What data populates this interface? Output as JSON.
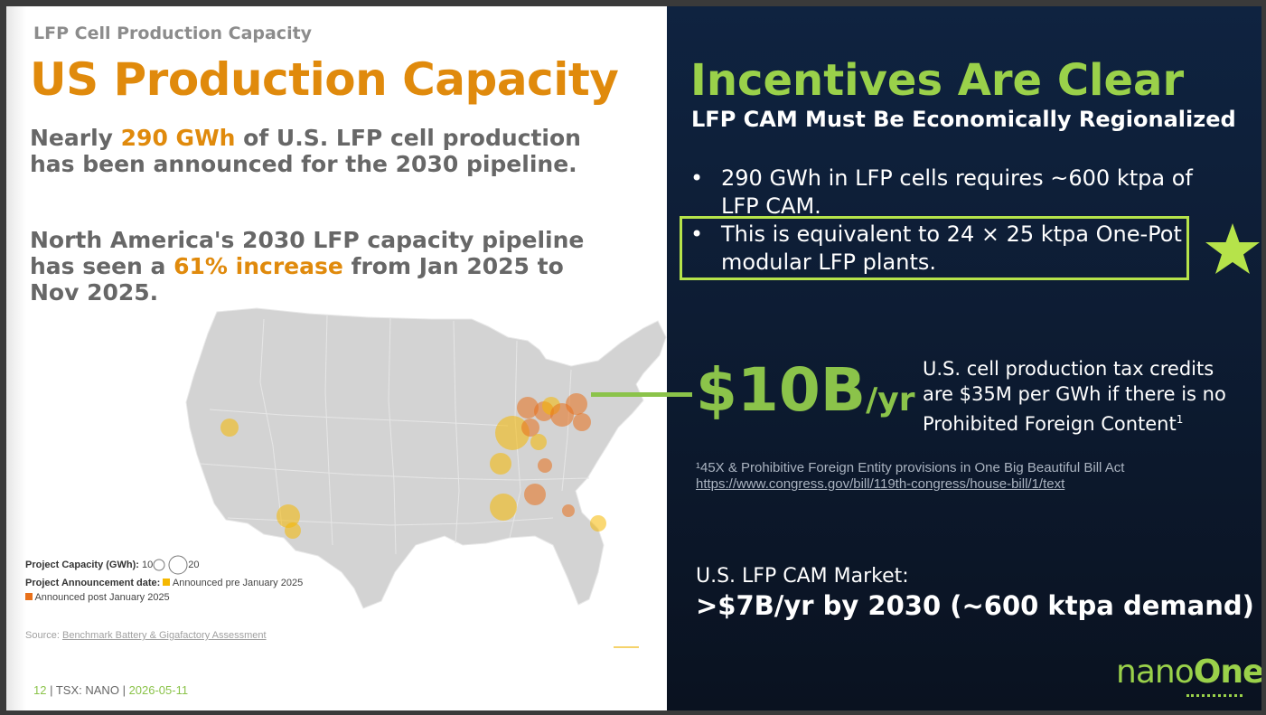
{
  "left": {
    "kicker": "LFP Cell Production Capacity",
    "title": "US Production Capacity",
    "para1": {
      "pre": "Nearly ",
      "highlight": "290 GWh",
      "post": " of U.S. LFP cell production has been announced for the 2030 pipeline."
    },
    "para2": {
      "pre": "North America's 2030 LFP capacity pipeline has seen a ",
      "highlight": "61% increase",
      "post": " from Jan 2025 to Nov 2025."
    },
    "legend": {
      "capacity_label": "Project Capacity (GWh):",
      "capacity_small": "10",
      "capacity_large": "20",
      "date_label": "Project Announcement date:",
      "pre_label": "Announced pre January 2025",
      "post_label": "Announced post January 2025",
      "pre_color": "#f5b800",
      "post_color": "#e8701a"
    },
    "source_label": "Source:",
    "source_link": "Benchmark Battery & Gigafactory Assessment",
    "footer": {
      "page": "12",
      "ticker": "TSX: NANO",
      "date": "2026-05-11"
    }
  },
  "right": {
    "title": "Incentives Are Clear",
    "subtitle": "LFP CAM Must Be Economically Regionalized",
    "bullets": [
      "290 GWh in LFP cells requires ~600 ktpa of LFP CAM.",
      "This is equivalent to 24 × 25 ktpa One-Pot modular LFP plants."
    ],
    "bullet_glyph": "•",
    "big_value": "$10B",
    "big_unit": "/yr",
    "credit_text": "U.S. cell production tax credits are $35M per GWh if there is no Prohibited Foreign Content",
    "credit_sup": "1",
    "footnote": "¹45X & Prohibitive Foreign Entity provisions in One Big Beautiful Bill Act",
    "footnote_link": "https://www.congress.gov/bill/119th-congress/house-bill/1/text",
    "market_label": "U.S. LFP CAM Market:",
    "market_value": ">$7B/yr by 2030 (~600 ktpa demand)",
    "logo_a": "nano",
    "logo_b": "One",
    "accent": "#9ad14a",
    "star_color": "#b6e34a"
  }
}
